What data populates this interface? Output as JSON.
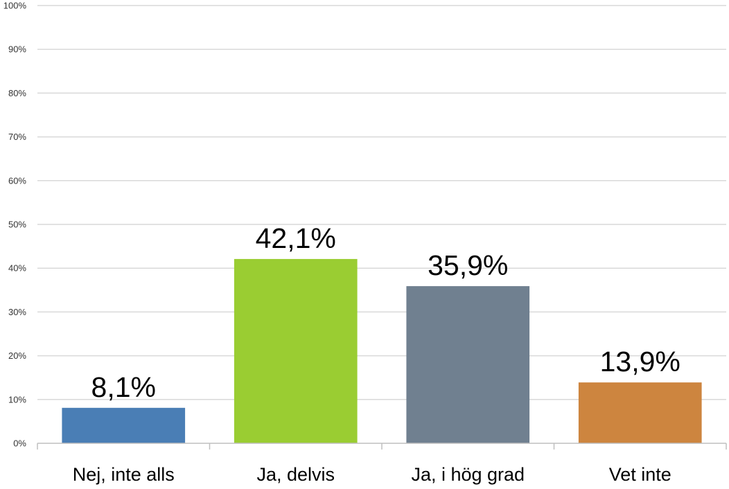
{
  "chart_data": {
    "type": "bar",
    "categories": [
      "Nej, inte alls",
      "Ja, delvis",
      "Ja, i hög grad",
      "Vet inte"
    ],
    "values": [
      8.1,
      42.1,
      35.9,
      13.9
    ],
    "data_labels": [
      "8,1%",
      "42,1%",
      "35,9%",
      "13,9%"
    ],
    "colors": [
      "#4a7eb5",
      "#9acd32",
      "#708090",
      "#cd853f"
    ],
    "ylim": [
      0,
      100
    ],
    "yticks": [
      0,
      10,
      20,
      30,
      40,
      50,
      60,
      70,
      80,
      90,
      100
    ],
    "ytick_labels": [
      "0%",
      "10%",
      "20%",
      "30%",
      "40%",
      "50%",
      "60%",
      "70%",
      "80%",
      "90%",
      "100%"
    ],
    "grid": true,
    "gridline_color": "#d9d9d9",
    "axis_color": "#bfbfbf",
    "title": "",
    "xlabel": "",
    "ylabel": ""
  }
}
